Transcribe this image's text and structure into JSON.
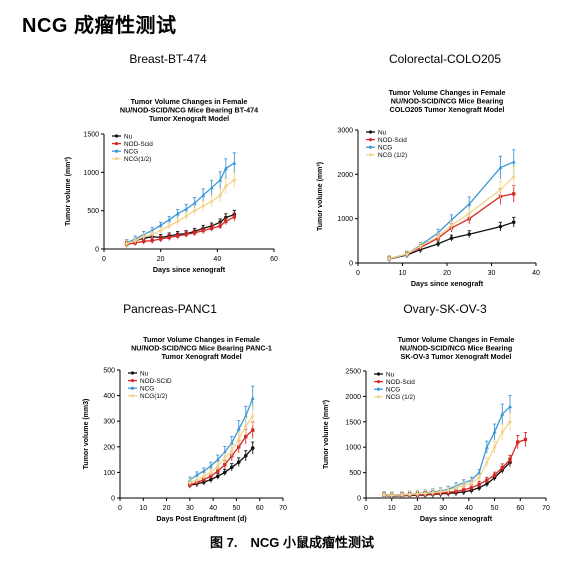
{
  "page_title": "NCG 成瘤性测试",
  "caption": "图 7.　NCG 小鼠成瘤性测试",
  "colors": {
    "Nu": "#111111",
    "NOD-Scid": "#d42a26",
    "NCG": "#3a98d8",
    "NCG(1/2)": "#f3d48c"
  },
  "chart_data": [
    {
      "panel_heading": "Breast-BT-474",
      "type": "line",
      "title": [
        "Tumor Volume  Changes in Female",
        "NU/NOD-SCID/NCG Mice Bearing BT-474",
        "Tumor Xenograft Model"
      ],
      "xlabel": "Days since xenograft",
      "ylabel": "Tumor volume (mm³)",
      "xlim": [
        0,
        60
      ],
      "ylim": [
        0,
        1500
      ],
      "xticks": [
        0,
        20,
        40,
        60
      ],
      "yticks": [
        0,
        500,
        1000,
        1500
      ],
      "legend": [
        "Nu",
        "NOD-Scid",
        "NCG",
        "NCG(1/2)"
      ],
      "legend_position": "top-left",
      "series": [
        {
          "name": "Nu",
          "x": [
            8,
            11,
            14,
            17,
            20,
            23,
            26,
            29,
            32,
            35,
            38,
            41,
            43,
            46
          ],
          "y": [
            80,
            110,
            140,
            160,
            150,
            170,
            190,
            200,
            230,
            270,
            300,
            350,
            410,
            450
          ]
        },
        {
          "name": "NOD-Scid",
          "x": [
            8,
            11,
            14,
            17,
            20,
            23,
            26,
            29,
            32,
            35,
            38,
            41,
            43,
            46
          ],
          "y": [
            60,
            80,
            100,
            110,
            130,
            150,
            170,
            190,
            210,
            240,
            270,
            300,
            360,
            420
          ]
        },
        {
          "name": "NCG",
          "x": [
            8,
            11,
            14,
            17,
            20,
            23,
            26,
            29,
            32,
            35,
            38,
            41,
            43,
            46
          ],
          "y": [
            80,
            130,
            190,
            240,
            310,
            380,
            460,
            520,
            600,
            700,
            800,
            900,
            1050,
            1120
          ]
        },
        {
          "name": "NCG(1/2)",
          "x": [
            8,
            11,
            14,
            17,
            20,
            23,
            26,
            29,
            32,
            35,
            38,
            41,
            43,
            46
          ],
          "y": [
            70,
            110,
            160,
            190,
            240,
            300,
            360,
            430,
            500,
            560,
            620,
            700,
            820,
            900
          ]
        }
      ]
    },
    {
      "panel_heading": "Colorectal-COLO205",
      "type": "line",
      "title": [
        "Tumor Volume  Changes in Female",
        "NU/NOD-SCID/NCG Mice Bearing",
        "COLO205 Tumor Xenograft Model"
      ],
      "xlabel": "Days since xenograft",
      "ylabel": "Tumor volume (mm³)",
      "xlim": [
        0,
        40
      ],
      "ylim": [
        0,
        3000
      ],
      "xticks": [
        0,
        10,
        20,
        30,
        40
      ],
      "yticks": [
        0,
        1000,
        2000,
        3000
      ],
      "legend": [
        "Nu",
        "NOD-Scid",
        "NCG",
        "NCG (1/2)"
      ],
      "legend_position": "top-left",
      "series": [
        {
          "name": "Nu",
          "x": [
            7,
            11,
            14,
            18,
            21,
            25,
            32,
            35
          ],
          "y": [
            90,
            180,
            300,
            430,
            560,
            650,
            820,
            920
          ]
        },
        {
          "name": "NOD-Scid",
          "x": [
            7,
            11,
            14,
            18,
            21,
            25,
            32,
            35
          ],
          "y": [
            100,
            200,
            350,
            560,
            790,
            1000,
            1500,
            1560
          ]
        },
        {
          "name": "NCG",
          "x": [
            7,
            11,
            14,
            18,
            21,
            25,
            32,
            35
          ],
          "y": [
            100,
            200,
            400,
            680,
            970,
            1330,
            2150,
            2280
          ]
        },
        {
          "name": "NCG (1/2)",
          "x": [
            7,
            11,
            14,
            18,
            21,
            25,
            32,
            35
          ],
          "y": [
            100,
            200,
            380,
            600,
            850,
            1120,
            1650,
            1950
          ]
        }
      ]
    },
    {
      "panel_heading": "Pancreas-PANC1",
      "type": "line",
      "title": [
        "Tumor Volume  Changes in Female",
        "NU/NOD-SCID/NCG Mice Bearing PANC-1",
        "Tumor Xenograft Model"
      ],
      "xlabel": "Days Post Engraftment (d)",
      "ylabel": "Tumor volume (mm3)",
      "xlim": [
        0,
        70
      ],
      "ylim": [
        0,
        500
      ],
      "xticks": [
        0,
        10,
        20,
        30,
        40,
        50,
        60,
        70
      ],
      "yticks": [
        0,
        100,
        200,
        300,
        400,
        500
      ],
      "legend": [
        "Nu",
        "NOD-SCID",
        "NCG",
        "NCG(1/2)"
      ],
      "legend_position": "top-left",
      "series": [
        {
          "name": "Nu",
          "x": [
            30,
            33,
            36,
            39,
            42,
            45,
            48,
            51,
            54,
            57
          ],
          "y": [
            50,
            55,
            62,
            72,
            85,
            100,
            120,
            140,
            165,
            195
          ]
        },
        {
          "name": "NOD-SCID",
          "x": [
            30,
            33,
            36,
            39,
            42,
            45,
            48,
            51,
            54,
            57
          ],
          "y": [
            52,
            60,
            72,
            85,
            105,
            130,
            165,
            200,
            240,
            265
          ]
        },
        {
          "name": "NCG",
          "x": [
            30,
            33,
            36,
            39,
            42,
            45,
            48,
            51,
            54,
            57
          ],
          "y": [
            70,
            90,
            105,
            125,
            150,
            180,
            215,
            270,
            320,
            390
          ]
        },
        {
          "name": "NCG(1/2)",
          "x": [
            30,
            33,
            36,
            39,
            42,
            45,
            48,
            51,
            54,
            57
          ],
          "y": [
            60,
            70,
            85,
            100,
            125,
            155,
            185,
            230,
            280,
            320
          ]
        }
      ]
    },
    {
      "panel_heading": "Ovary-SK-OV-3",
      "type": "line",
      "title": [
        "Tumor Volume  Changes in Female",
        "NU/NOD-SCID/NCG Mice Bearing",
        "SK-OV-3 Tumor Xenograft Model"
      ],
      "xlabel": "Days since xenograft",
      "ylabel": "Tumor volume (mm³)",
      "xlim": [
        0,
        70
      ],
      "ylim": [
        0,
        2500
      ],
      "xticks": [
        0,
        10,
        20,
        30,
        40,
        50,
        60,
        70
      ],
      "yticks": [
        0,
        500,
        1000,
        1500,
        2000,
        2500
      ],
      "legend": [
        "Nu",
        "NOD-Scid",
        "NCG",
        "NCG (1/2)"
      ],
      "legend_position": "top-left",
      "series": [
        {
          "name": "Nu",
          "x": [
            7,
            10,
            14,
            17,
            20,
            23,
            26,
            29,
            32,
            35,
            38,
            41,
            44,
            47,
            50,
            53,
            56
          ],
          "y": [
            50,
            40,
            45,
            50,
            55,
            60,
            70,
            80,
            90,
            100,
            120,
            150,
            200,
            280,
            400,
            550,
            700
          ]
        },
        {
          "name": "NOD-Scid",
          "x": [
            7,
            10,
            14,
            17,
            20,
            23,
            26,
            29,
            32,
            35,
            38,
            41,
            44,
            47,
            50,
            53,
            56,
            59,
            62
          ],
          "y": [
            60,
            50,
            55,
            60,
            65,
            75,
            85,
            95,
            110,
            130,
            160,
            200,
            270,
            350,
            450,
            600,
            750,
            1100,
            1150
          ]
        },
        {
          "name": "NCG",
          "x": [
            7,
            10,
            14,
            17,
            20,
            23,
            26,
            29,
            32,
            35,
            38,
            41,
            44,
            47,
            50,
            53,
            56
          ],
          "y": [
            70,
            60,
            65,
            75,
            85,
            100,
            120,
            140,
            170,
            240,
            300,
            350,
            500,
            1000,
            1300,
            1650,
            1800
          ]
        },
        {
          "name": "NCG (1/2)",
          "x": [
            7,
            10,
            14,
            17,
            20,
            23,
            26,
            29,
            32,
            35,
            38,
            41,
            44,
            47,
            50,
            53,
            56
          ],
          "y": [
            60,
            55,
            60,
            70,
            80,
            90,
            105,
            125,
            150,
            200,
            250,
            300,
            400,
            700,
            1000,
            1300,
            1500
          ]
        }
      ]
    }
  ]
}
